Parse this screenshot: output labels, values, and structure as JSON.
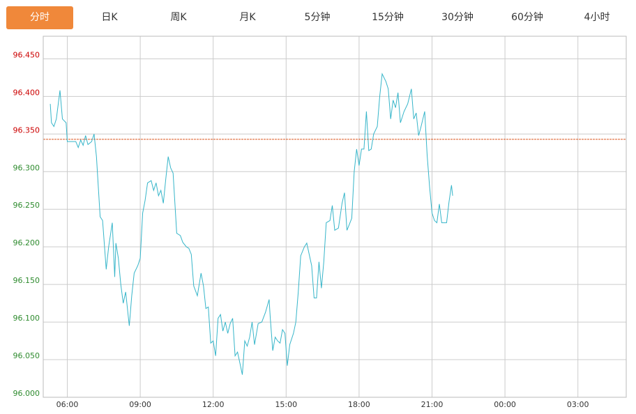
{
  "tabs": [
    {
      "label": "分时",
      "active": true
    },
    {
      "label": "日K",
      "active": false
    },
    {
      "label": "周K",
      "active": false
    },
    {
      "label": "月K",
      "active": false
    },
    {
      "label": "5分钟",
      "active": false
    },
    {
      "label": "15分钟",
      "active": false
    },
    {
      "label": "30分钟",
      "active": false
    },
    {
      "label": "60分钟",
      "active": false
    },
    {
      "label": "4小时",
      "active": false
    }
  ],
  "colors": {
    "accent": "#f0883a",
    "line": "#36b5c9",
    "reference": "#d9531e",
    "up": "#cc0000",
    "down": "#2e8b2e",
    "grid": "#cccccc"
  },
  "chart_data": {
    "type": "line",
    "reference_value": 96.343,
    "ylim": [
      96.0,
      96.48
    ],
    "yticks": [
      "96.000",
      "96.050",
      "96.100",
      "96.150",
      "96.200",
      "96.250",
      "96.300",
      "96.350",
      "96.400",
      "96.450"
    ],
    "xlim": [
      5.3,
      4.7
    ],
    "xticks": [
      {
        "t": 6,
        "label": "06:00"
      },
      {
        "t": 9,
        "label": "09:00"
      },
      {
        "t": 12,
        "label": "12:00"
      },
      {
        "t": 15,
        "label": "15:00"
      },
      {
        "t": 18,
        "label": "18:00"
      },
      {
        "t": 21,
        "label": "21:00"
      },
      {
        "t": 24,
        "label": "00:00"
      },
      {
        "t": 27,
        "label": "03:00"
      }
    ],
    "points": [
      [
        5.3,
        96.39
      ],
      [
        5.35,
        96.365
      ],
      [
        5.45,
        96.36
      ],
      [
        5.55,
        96.37
      ],
      [
        5.7,
        96.408
      ],
      [
        5.8,
        96.37
      ],
      [
        5.95,
        96.365
      ],
      [
        6.0,
        96.34
      ],
      [
        6.2,
        96.34
      ],
      [
        6.35,
        96.34
      ],
      [
        6.45,
        96.332
      ],
      [
        6.55,
        96.342
      ],
      [
        6.65,
        96.335
      ],
      [
        6.75,
        96.348
      ],
      [
        6.85,
        96.336
      ],
      [
        7.0,
        96.34
      ],
      [
        7.1,
        96.35
      ],
      [
        7.2,
        96.32
      ],
      [
        7.35,
        96.24
      ],
      [
        7.45,
        96.235
      ],
      [
        7.6,
        96.17
      ],
      [
        7.7,
        96.2
      ],
      [
        7.85,
        96.232
      ],
      [
        7.95,
        96.16
      ],
      [
        8.0,
        96.205
      ],
      [
        8.1,
        96.185
      ],
      [
        8.2,
        96.15
      ],
      [
        8.3,
        96.125
      ],
      [
        8.4,
        96.14
      ],
      [
        8.55,
        96.095
      ],
      [
        8.65,
        96.135
      ],
      [
        8.75,
        96.165
      ],
      [
        8.9,
        96.175
      ],
      [
        9.0,
        96.185
      ],
      [
        9.1,
        96.245
      ],
      [
        9.2,
        96.262
      ],
      [
        9.3,
        96.285
      ],
      [
        9.45,
        96.288
      ],
      [
        9.55,
        96.275
      ],
      [
        9.65,
        96.285
      ],
      [
        9.75,
        96.268
      ],
      [
        9.85,
        96.275
      ],
      [
        9.95,
        96.258
      ],
      [
        10.05,
        96.29
      ],
      [
        10.15,
        96.32
      ],
      [
        10.25,
        96.305
      ],
      [
        10.35,
        96.298
      ],
      [
        10.5,
        96.218
      ],
      [
        10.65,
        96.215
      ],
      [
        10.75,
        96.206
      ],
      [
        10.9,
        96.2
      ],
      [
        11.0,
        96.198
      ],
      [
        11.1,
        96.19
      ],
      [
        11.2,
        96.148
      ],
      [
        11.35,
        96.135
      ],
      [
        11.5,
        96.165
      ],
      [
        11.6,
        96.148
      ],
      [
        11.7,
        96.118
      ],
      [
        11.8,
        96.12
      ],
      [
        11.9,
        96.072
      ],
      [
        12.0,
        96.075
      ],
      [
        12.1,
        96.055
      ],
      [
        12.2,
        96.105
      ],
      [
        12.3,
        96.11
      ],
      [
        12.4,
        96.088
      ],
      [
        12.5,
        96.1
      ],
      [
        12.6,
        96.085
      ],
      [
        12.7,
        96.098
      ],
      [
        12.8,
        96.105
      ],
      [
        12.9,
        96.055
      ],
      [
        13.0,
        96.06
      ],
      [
        13.1,
        96.045
      ],
      [
        13.2,
        96.03
      ],
      [
        13.3,
        96.075
      ],
      [
        13.4,
        96.068
      ],
      [
        13.5,
        96.08
      ],
      [
        13.6,
        96.1
      ],
      [
        13.7,
        96.07
      ],
      [
        13.85,
        96.098
      ],
      [
        14.0,
        96.1
      ],
      [
        14.15,
        96.113
      ],
      [
        14.3,
        96.13
      ],
      [
        14.35,
        96.105
      ],
      [
        14.45,
        96.062
      ],
      [
        14.55,
        96.08
      ],
      [
        14.65,
        96.075
      ],
      [
        14.75,
        96.072
      ],
      [
        14.85,
        96.09
      ],
      [
        14.95,
        96.085
      ],
      [
        15.05,
        96.042
      ],
      [
        15.15,
        96.07
      ],
      [
        15.3,
        96.085
      ],
      [
        15.4,
        96.1
      ],
      [
        15.5,
        96.14
      ],
      [
        15.6,
        96.188
      ],
      [
        15.75,
        96.2
      ],
      [
        15.85,
        96.205
      ],
      [
        15.95,
        96.19
      ],
      [
        16.05,
        96.175
      ],
      [
        16.15,
        96.132
      ],
      [
        16.25,
        96.132
      ],
      [
        16.35,
        96.18
      ],
      [
        16.45,
        96.145
      ],
      [
        16.55,
        96.18
      ],
      [
        16.65,
        96.232
      ],
      [
        16.8,
        96.235
      ],
      [
        16.9,
        96.255
      ],
      [
        17.0,
        96.222
      ],
      [
        17.15,
        96.225
      ],
      [
        17.3,
        96.258
      ],
      [
        17.4,
        96.272
      ],
      [
        17.5,
        96.222
      ],
      [
        17.6,
        96.23
      ],
      [
        17.7,
        96.238
      ],
      [
        17.8,
        96.3
      ],
      [
        17.9,
        96.33
      ],
      [
        18.0,
        96.308
      ],
      [
        18.1,
        96.33
      ],
      [
        18.2,
        96.33
      ],
      [
        18.3,
        96.38
      ],
      [
        18.4,
        96.328
      ],
      [
        18.5,
        96.33
      ],
      [
        18.6,
        96.35
      ],
      [
        18.75,
        96.36
      ],
      [
        18.85,
        96.4
      ],
      [
        18.95,
        96.43
      ],
      [
        19.1,
        96.42
      ],
      [
        19.2,
        96.41
      ],
      [
        19.3,
        96.37
      ],
      [
        19.4,
        96.395
      ],
      [
        19.5,
        96.385
      ],
      [
        19.6,
        96.405
      ],
      [
        19.7,
        96.365
      ],
      [
        19.85,
        96.38
      ],
      [
        20.0,
        96.39
      ],
      [
        20.15,
        96.41
      ],
      [
        20.25,
        96.37
      ],
      [
        20.35,
        96.378
      ],
      [
        20.45,
        96.348
      ],
      [
        20.55,
        96.36
      ],
      [
        20.7,
        96.38
      ],
      [
        20.8,
        96.322
      ],
      [
        20.9,
        96.28
      ],
      [
        21.0,
        96.245
      ],
      [
        21.1,
        96.235
      ],
      [
        21.2,
        96.232
      ],
      [
        21.3,
        96.257
      ],
      [
        21.4,
        96.232
      ],
      [
        21.6,
        96.232
      ],
      [
        21.7,
        96.26
      ],
      [
        21.8,
        96.282
      ],
      [
        21.85,
        96.268
      ]
    ]
  }
}
